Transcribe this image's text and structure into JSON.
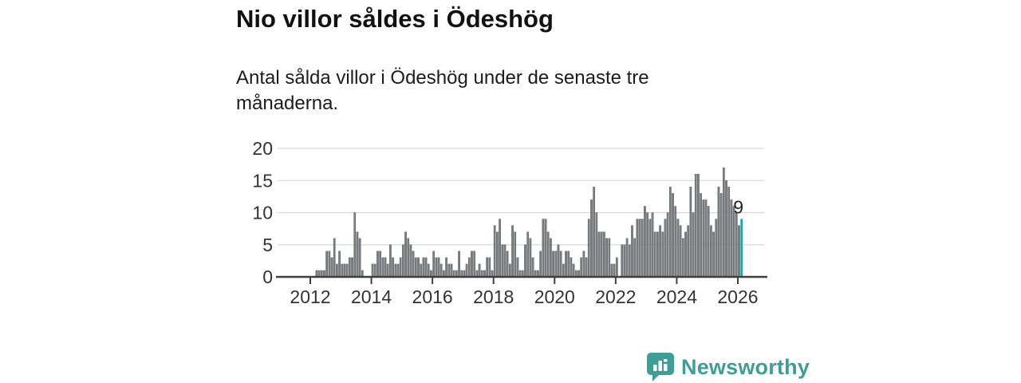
{
  "header": {
    "title": "Nio villor såldes i Ödeshög",
    "subtitle": "Antal sålda villor i Ödeshög under de senaste tre månaderna."
  },
  "chart_data": {
    "type": "bar",
    "title": "Nio villor såldes i Ödeshög",
    "xlabel": "",
    "ylabel": "",
    "ylim": [
      0,
      20
    ],
    "y_ticks": [
      0,
      5,
      10,
      15,
      20
    ],
    "x_ticks": [
      2012,
      2014,
      2016,
      2018,
      2020,
      2022,
      2024,
      2026
    ],
    "grid": true,
    "legend": "none",
    "start_month": "2012-01",
    "values": [
      0,
      0,
      1,
      1,
      1,
      1,
      4,
      4,
      3,
      6,
      2,
      4,
      2,
      2,
      2,
      3,
      3,
      10,
      7,
      6,
      1,
      0,
      0,
      0,
      2,
      2,
      4,
      4,
      3,
      3,
      2,
      5,
      3,
      2,
      2,
      3,
      5,
      7,
      6,
      5,
      4,
      3,
      3,
      2,
      3,
      3,
      2,
      1,
      4,
      3,
      3,
      2,
      1,
      3,
      2,
      2,
      1,
      1,
      4,
      1,
      1,
      2,
      3,
      4,
      4,
      1,
      2,
      1,
      1,
      3,
      3,
      1,
      8,
      7,
      9,
      5,
      5,
      4,
      2,
      8,
      7,
      3,
      1,
      1,
      5,
      7,
      6,
      3,
      1,
      1,
      4,
      9,
      9,
      7,
      6,
      4,
      4,
      5,
      4,
      2,
      4,
      4,
      3,
      2,
      1,
      1,
      3,
      4,
      3,
      9,
      12,
      14,
      10,
      7,
      7,
      7,
      6,
      6,
      2,
      2,
      3,
      0,
      5,
      5,
      6,
      5,
      8,
      6,
      9,
      9,
      9,
      11,
      10,
      9,
      10,
      7,
      7,
      8,
      7,
      9,
      10,
      14,
      13,
      11,
      9,
      8,
      6,
      7,
      8,
      14,
      10,
      16,
      16,
      13,
      12,
      12,
      11,
      8,
      7,
      9,
      14,
      13,
      17,
      15,
      14,
      12,
      11,
      10,
      8,
      9
    ],
    "highlight_last_bar": true,
    "last_bar_value_label": "9",
    "bar_color": "#7b7e82",
    "bar_stroke": "#55575a",
    "highlight_color": "#0ca9a6",
    "grid_color": "#d9d9d9",
    "axis_color": "#3f3f3f",
    "tick_label_color": "#333333"
  },
  "branding": {
    "logo_text": "Newsworthy",
    "logo_color": "#3d9e97",
    "logo_icon": "bar-chart-speech-bubble"
  }
}
